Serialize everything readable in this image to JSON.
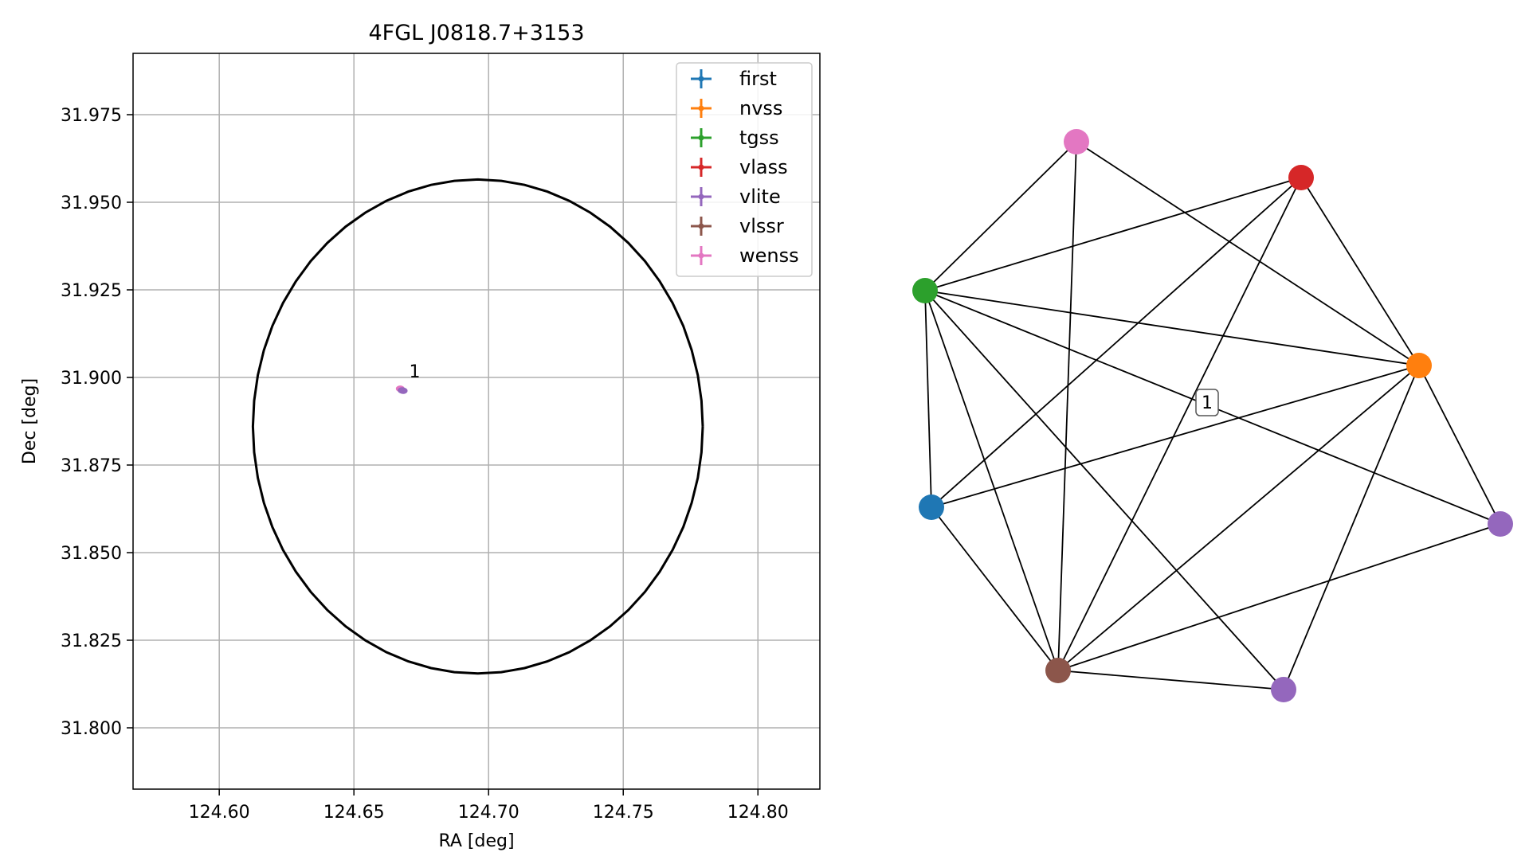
{
  "chart_data": [
    {
      "type": "scatter",
      "title": "4FGL J0818.7+3153",
      "xlabel": "RA [deg]",
      "ylabel": "Dec [deg]",
      "xlim": [
        124.568,
        124.823
      ],
      "ylim": [
        31.7825,
        31.9925
      ],
      "x_ticks": [
        124.6,
        124.65,
        124.7,
        124.75,
        124.8
      ],
      "x_tick_labels": [
        "124.60",
        "124.65",
        "124.70",
        "124.75",
        "124.80"
      ],
      "y_ticks": [
        31.8,
        31.825,
        31.85,
        31.875,
        31.9,
        31.925,
        31.95,
        31.975
      ],
      "y_tick_labels": [
        "31.800",
        "31.825",
        "31.850",
        "31.875",
        "31.900",
        "31.925",
        "31.950",
        "31.975"
      ],
      "grid": true,
      "legend_position": "top-right",
      "series": [
        {
          "name": "first",
          "color": "#1f77b4"
        },
        {
          "name": "nvss",
          "color": "#ff7f0e"
        },
        {
          "name": "tgss",
          "color": "#2ca02c"
        },
        {
          "name": "vlass",
          "color": "#d62728"
        },
        {
          "name": "vlite",
          "color": "#9467bd"
        },
        {
          "name": "vlssr",
          "color": "#8c564b"
        },
        {
          "name": "wenss",
          "color": "#e377c2"
        }
      ],
      "sources": [
        {
          "x": 124.6672,
          "y": 31.8968,
          "color": "#e377c2"
        },
        {
          "x": 124.6679,
          "y": 31.8963,
          "color": "#9467bd"
        },
        {
          "x": 124.6683,
          "y": 31.8962,
          "color": "#9467bd"
        }
      ],
      "annotation": {
        "text": "1",
        "x": 124.6705,
        "y": 31.9
      },
      "region_circle": {
        "center": [
          124.696,
          31.886
        ],
        "ra_radius": 0.0835,
        "dec_radius": 0.0705,
        "color": "#000000"
      }
    },
    {
      "type": "network",
      "nodes": [
        {
          "id": "pink",
          "color": "#e377c2"
        },
        {
          "id": "red",
          "color": "#d62728"
        },
        {
          "id": "green",
          "color": "#2ca02c"
        },
        {
          "id": "orange",
          "color": "#ff7f0e"
        },
        {
          "id": "blue",
          "color": "#1f77b4"
        },
        {
          "id": "purple_right",
          "color": "#9467bd"
        },
        {
          "id": "brown",
          "color": "#8c564b"
        },
        {
          "id": "purple_bottom",
          "color": "#9467bd"
        }
      ],
      "edges": [
        [
          "pink",
          "green"
        ],
        [
          "pink",
          "orange"
        ],
        [
          "pink",
          "brown"
        ],
        [
          "red",
          "green"
        ],
        [
          "red",
          "orange"
        ],
        [
          "red",
          "blue"
        ],
        [
          "red",
          "brown"
        ],
        [
          "green",
          "orange"
        ],
        [
          "green",
          "blue"
        ],
        [
          "green",
          "brown"
        ],
        [
          "green",
          "purple_right"
        ],
        [
          "green",
          "purple_bottom"
        ],
        [
          "orange",
          "blue"
        ],
        [
          "orange",
          "brown"
        ],
        [
          "orange",
          "purple_right"
        ],
        [
          "orange",
          "purple_bottom"
        ],
        [
          "blue",
          "brown"
        ],
        [
          "brown",
          "purple_right"
        ],
        [
          "brown",
          "purple_bottom"
        ]
      ],
      "label": "1"
    }
  ]
}
